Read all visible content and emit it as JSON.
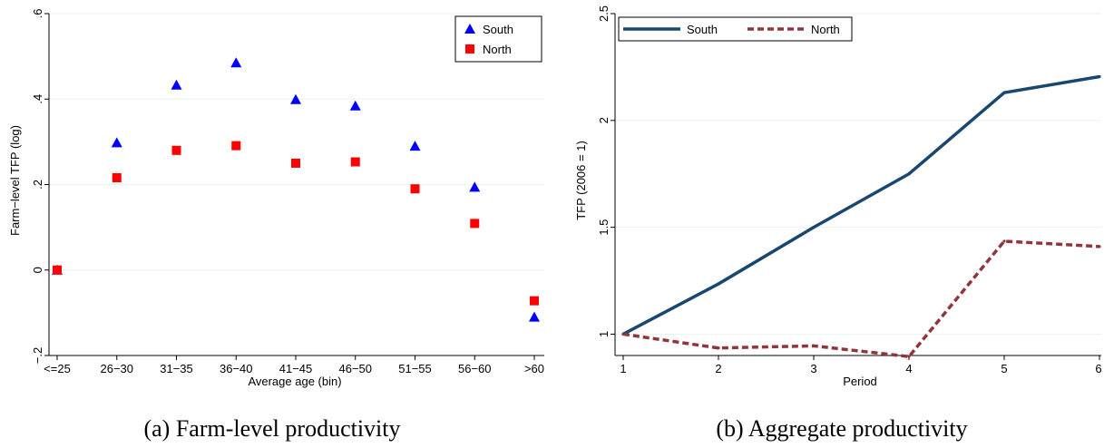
{
  "chart_data": [
    {
      "type": "scatter",
      "caption": "(a) Farm-level productivity",
      "xlabel": "Average age (bin)",
      "ylabel": "Farm−level TFP (log)",
      "categories": [
        "<=25",
        "26−30",
        "31−35",
        "36−40",
        "41−45",
        "46−50",
        "51−55",
        "56−60",
        ">60"
      ],
      "ylim": [
        -0.2,
        0.6
      ],
      "yticks": [
        -0.2,
        0,
        0.2,
        0.4,
        0.6
      ],
      "ytick_labels": [
        "−.2",
        "0",
        ".2",
        ".4",
        ".6"
      ],
      "grid": true,
      "legend_position": "top-right",
      "series": [
        {
          "name": "South",
          "marker": "triangle",
          "color": "#0000ff",
          "values": [
            0.0,
            0.298,
            0.433,
            0.485,
            0.399,
            0.384,
            0.29,
            0.194,
            -0.11
          ]
        },
        {
          "name": "North",
          "marker": "square",
          "color": "#ff0000",
          "values": [
            0.0,
            0.216,
            0.28,
            0.291,
            0.25,
            0.253,
            0.19,
            0.109,
            -0.072
          ]
        }
      ]
    },
    {
      "type": "line",
      "caption": "(b) Aggregate productivity",
      "xlabel": "Period",
      "ylabel": "TFP (2006 = 1)",
      "x": [
        1,
        2,
        3,
        4,
        5,
        6
      ],
      "xlim": [
        1,
        6
      ],
      "ylim": [
        0.9,
        2.5
      ],
      "yticks": [
        1,
        1.5,
        2,
        2.5
      ],
      "ytick_labels": [
        "1",
        "1.5",
        "2",
        "2.5"
      ],
      "grid": true,
      "legend_position": "top",
      "series": [
        {
          "name": "South",
          "style": "solid",
          "color": "#1a476f",
          "values": [
            1.0,
            1.235,
            1.5,
            1.75,
            2.13,
            2.205
          ]
        },
        {
          "name": "North",
          "style": "dashed",
          "color": "#90353b",
          "values": [
            1.0,
            0.935,
            0.945,
            0.895,
            1.435,
            1.41
          ]
        }
      ]
    }
  ]
}
